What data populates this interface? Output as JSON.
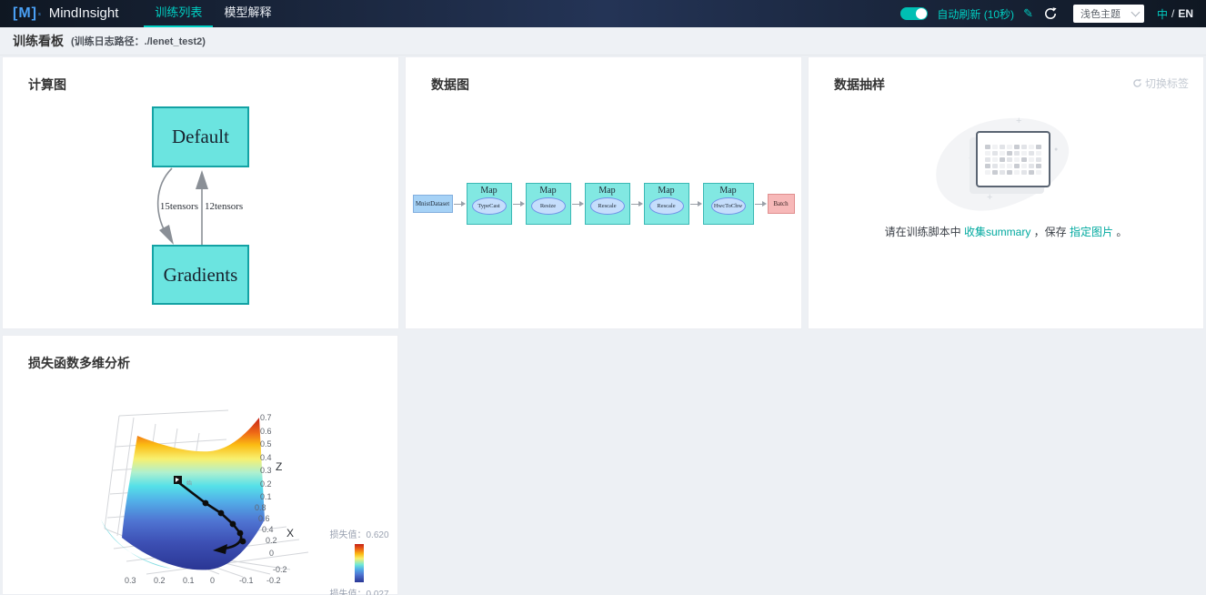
{
  "navbar": {
    "logo_bracket": "[M]",
    "logo_sup": "ˢ",
    "app_name": "MindInsight",
    "tabs": [
      {
        "label": "训练列表",
        "active": true
      },
      {
        "label": "模型解释",
        "active": false
      }
    ],
    "auto_refresh_label": "自动刷新 (10秒)",
    "pencil_glyph": "✎",
    "theme_select_value": "浅色主题",
    "lang_zh": "中",
    "lang_sep": "/",
    "lang_en": "EN"
  },
  "subheader": {
    "title": "训练看板",
    "log_path": "(训练日志路径：./lenet_test2)"
  },
  "panels": {
    "graph": {
      "title": "计算图",
      "node_top": "Default",
      "node_bottom": "Gradients",
      "edge_label_left": "15tensors",
      "edge_label_right": "12tensors"
    },
    "datagraph": {
      "title": "数据图",
      "pipeline": [
        {
          "type": "dataset",
          "label": "MnistDataset"
        },
        {
          "type": "map",
          "label": "Map",
          "op": "TypeCast"
        },
        {
          "type": "map",
          "label": "Map",
          "op": "Resize"
        },
        {
          "type": "map",
          "label": "Map",
          "op": "Rescale"
        },
        {
          "type": "map",
          "label": "Map",
          "op": "Rescale"
        },
        {
          "type": "map",
          "label": "Map",
          "op": "HwcToChw"
        },
        {
          "type": "batch",
          "label": "Batch"
        }
      ]
    },
    "sampling": {
      "title": "数据抽样",
      "switch_label": "切换标签",
      "message_parts": [
        {
          "text": "请在训练脚本中 ",
          "link": false
        },
        {
          "text": "收集summary",
          "link": true
        },
        {
          "text": " ，保存 ",
          "link": false
        },
        {
          "text": "指定图片",
          "link": true
        },
        {
          "text": " 。",
          "link": false
        }
      ]
    },
    "loss": {
      "title": "损失函数多维分析"
    }
  },
  "chart_data": {
    "type": "surface3d",
    "title": "损失函数多维分析",
    "zlabel": "Z",
    "xlabel": "X",
    "z_ticks": [
      "0.7",
      "0.6",
      "0.5",
      "0.4",
      "0.3",
      "0.2",
      "0.1"
    ],
    "x_ticks": [
      "0.8",
      "0.6",
      "0.4",
      "0.2",
      "0",
      "-0.2"
    ],
    "y_ticks": [
      "0.3",
      "0.2",
      "0.1",
      "0",
      "-0.1",
      "-0.2"
    ],
    "z_range": [
      -0.2,
      0.7
    ],
    "x_range": [
      -0.2,
      0.8
    ],
    "y_range": [
      -0.2,
      0.3
    ],
    "colorbar": {
      "label": "损失值",
      "max": 0.62,
      "min": 0.027,
      "max_text": "损失值：0.620",
      "min_text": "损失值：0.027"
    },
    "start_marker_label": "始",
    "trajectory_points_rel": [
      [
        95,
        89
      ],
      [
        125,
        112
      ],
      [
        142,
        123
      ],
      [
        155,
        135
      ],
      [
        163,
        145
      ],
      [
        166,
        154
      ],
      [
        140,
        163
      ]
    ],
    "legend_position": "right",
    "grid": true
  }
}
